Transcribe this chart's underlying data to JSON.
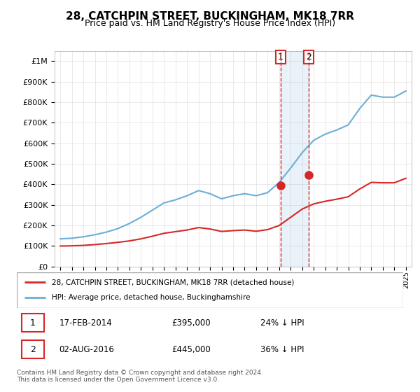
{
  "title": "28, CATCHPIN STREET, BUCKINGHAM, MK18 7RR",
  "subtitle": "Price paid vs. HM Land Registry's House Price Index (HPI)",
  "legend_line1": "28, CATCHPIN STREET, BUCKINGHAM, MK18 7RR (detached house)",
  "legend_line2": "HPI: Average price, detached house, Buckinghamshire",
  "footer": "Contains HM Land Registry data © Crown copyright and database right 2024.\nThis data is licensed under the Open Government Licence v3.0.",
  "sale1_label": "1",
  "sale1_date": "17-FEB-2014",
  "sale1_price": "£395,000",
  "sale1_hpi": "24% ↓ HPI",
  "sale2_label": "2",
  "sale2_date": "02-AUG-2016",
  "sale2_price": "£445,000",
  "sale2_hpi": "36% ↓ HPI",
  "hpi_color": "#6baed6",
  "price_color": "#d62728",
  "marker_color": "#d62728",
  "sale1_x": 2014.12,
  "sale1_y": 395000,
  "sale2_x": 2016.58,
  "sale2_y": 445000,
  "ylim": [
    0,
    1050000
  ],
  "xlim": [
    1994.5,
    2025.5
  ],
  "hpi_data": {
    "x": [
      1995,
      1996,
      1997,
      1998,
      1999,
      2000,
      2001,
      2002,
      2003,
      2004,
      2005,
      2006,
      2007,
      2008,
      2009,
      2010,
      2011,
      2012,
      2013,
      2014,
      2015,
      2016,
      2017,
      2018,
      2019,
      2020,
      2021,
      2022,
      2023,
      2024,
      2025
    ],
    "y": [
      135000,
      138000,
      145000,
      155000,
      168000,
      185000,
      210000,
      240000,
      275000,
      310000,
      325000,
      345000,
      370000,
      355000,
      330000,
      345000,
      355000,
      345000,
      360000,
      410000,
      480000,
      555000,
      615000,
      645000,
      665000,
      690000,
      770000,
      835000,
      825000,
      825000,
      855000
    ]
  },
  "price_data": {
    "x": [
      1995,
      1996,
      1997,
      1998,
      1999,
      2000,
      2001,
      2002,
      2003,
      2004,
      2005,
      2006,
      2007,
      2008,
      2009,
      2010,
      2011,
      2012,
      2013,
      2014,
      2015,
      2016,
      2017,
      2018,
      2019,
      2020,
      2021,
      2022,
      2023,
      2024,
      2025
    ],
    "y": [
      100000,
      101000,
      103000,
      107000,
      112000,
      118000,
      125000,
      135000,
      148000,
      162000,
      170000,
      178000,
      190000,
      183000,
      171000,
      175000,
      178000,
      172000,
      180000,
      200000,
      240000,
      280000,
      305000,
      318000,
      328000,
      340000,
      378000,
      410000,
      408000,
      408000,
      430000
    ]
  }
}
